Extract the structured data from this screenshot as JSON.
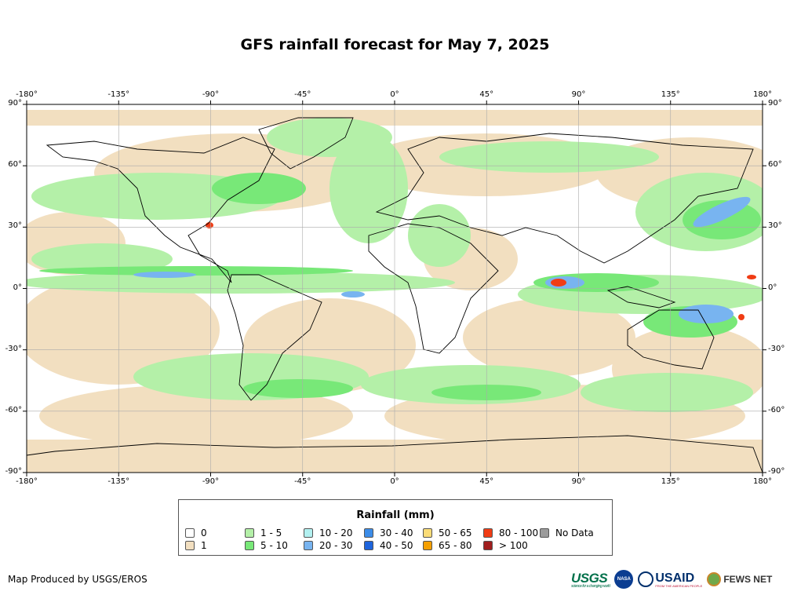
{
  "title": "GFS rainfall forecast for May 7, 2025",
  "axes": {
    "lon_labels": [
      "-180°",
      "-135°",
      "-90°",
      "-45°",
      "0°",
      "45°",
      "90°",
      "135°",
      "180°"
    ],
    "lat_labels": [
      "90°",
      "60°",
      "30°",
      "0°",
      "-30°",
      "-60°",
      "-90°"
    ]
  },
  "legend": {
    "title": "Rainfall (mm)",
    "items": [
      {
        "label": "0",
        "color": "#ffffff"
      },
      {
        "label": "1",
        "color": "#f2dfc0"
      },
      {
        "label": "1 - 5",
        "color": "#b4f0a8"
      },
      {
        "label": "5 - 10",
        "color": "#78e878"
      },
      {
        "label": "10 - 20",
        "color": "#b2f0f0"
      },
      {
        "label": "20 - 30",
        "color": "#78b4f0"
      },
      {
        "label": "30 - 40",
        "color": "#3c8ce8"
      },
      {
        "label": "40 - 50",
        "color": "#1e64dc"
      },
      {
        "label": "50 - 65",
        "color": "#fadc78"
      },
      {
        "label": "65 - 80",
        "color": "#f5a000"
      },
      {
        "label": "80 - 100",
        "color": "#f03c14"
      },
      {
        "label": "> 100",
        "color": "#a01e1e"
      },
      {
        "label": "No Data",
        "color": "#9b9b9b"
      }
    ]
  },
  "credit": "Map Produced by USGS/EROS",
  "logos": {
    "usgs": "USGS",
    "usgs_tagline": "science for a changing world",
    "nasa": "NASA",
    "usaid": "USAID",
    "usaid_tagline": "FROM THE AMERICAN PEOPLE",
    "fews": "FEWS NET"
  }
}
